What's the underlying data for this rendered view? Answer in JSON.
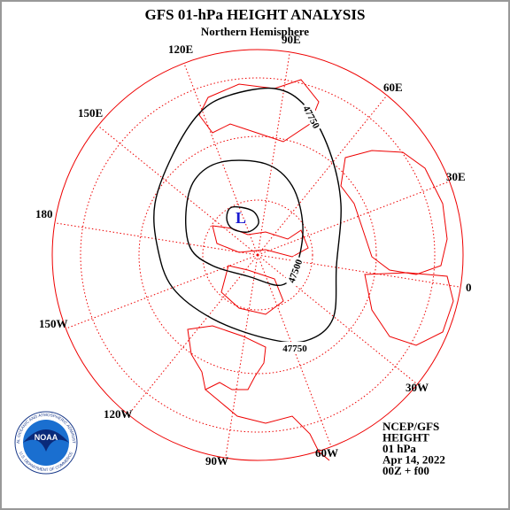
{
  "header": {
    "title": "GFS 01-hPa HEIGHT ANALYSIS",
    "subtitle": "Northern Hemisphere"
  },
  "map": {
    "longitude_labels": [
      "0",
      "30E",
      "60E",
      "90E",
      "120E",
      "150E",
      "180",
      "150W",
      "120W",
      "90W",
      "60W",
      "30W"
    ],
    "contour_labels": [
      "47750",
      "47500",
      "47750"
    ],
    "low_label": "L"
  },
  "info": {
    "lines": [
      "NCEP/GFS",
      "HEIGHT",
      "01 hPa",
      "Apr 14, 2022",
      "00Z + f00"
    ]
  },
  "logo": {
    "text": "NOAA",
    "ring_top": "NATIONAL OCEANIC AND ATMOSPHERIC ADMINISTRATION",
    "ring_bottom": "U.S. DEPARTMENT OF COMMERCE"
  }
}
